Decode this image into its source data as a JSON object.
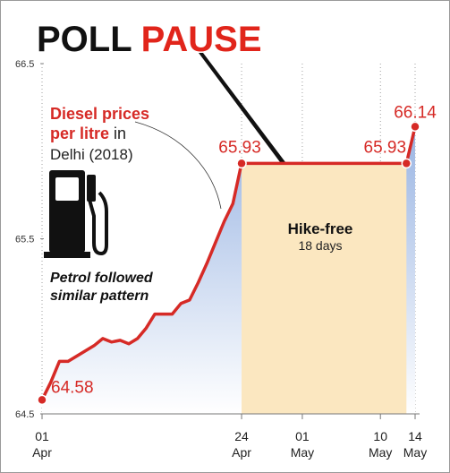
{
  "title": {
    "part1": "POLL",
    "part2": "PAUSE"
  },
  "note": {
    "bold": "Diesel prices",
    "line2_bold": "per litre",
    "line2_rest": " in",
    "line3": "Delhi (2018)"
  },
  "petrol_note": {
    "line1": "Petrol followed",
    "line2": "similar pattern"
  },
  "hike_free": {
    "title": "Hike-free",
    "subtitle": "18 days"
  },
  "colors": {
    "line": "#d62a26",
    "band": "#fbe7c0",
    "area_top": "#9ab5e3",
    "title_red": "#e1251b"
  },
  "chart_data": {
    "type": "line",
    "title": "POLL PAUSE",
    "ylabel": "",
    "xlabel": "",
    "ylim": [
      64.5,
      66.5
    ],
    "y_ticks": [
      "64.5",
      "65.5",
      "66.5"
    ],
    "x_ticks": [
      {
        "day": 0,
        "top": "01",
        "bottom": "Apr"
      },
      {
        "day": 23,
        "top": "24",
        "bottom": "Apr"
      },
      {
        "day": 30,
        "top": "01",
        "bottom": "May"
      },
      {
        "day": 39,
        "top": "10",
        "bottom": "May"
      },
      {
        "day": 43,
        "top": "14",
        "bottom": "May"
      }
    ],
    "series": [
      {
        "x": [
          0,
          1,
          2,
          3,
          4,
          5,
          6,
          7,
          8,
          9,
          10,
          11,
          12,
          13,
          14,
          15,
          16,
          17,
          18,
          19,
          20,
          21,
          22,
          23,
          42,
          43
        ],
        "values": [
          64.58,
          64.68,
          64.8,
          64.8,
          64.83,
          64.86,
          64.89,
          64.93,
          64.91,
          64.92,
          64.9,
          64.93,
          64.99,
          65.07,
          65.07,
          65.07,
          65.13,
          65.15,
          65.25,
          65.36,
          65.48,
          65.6,
          65.7,
          65.93,
          65.93,
          66.14
        ]
      }
    ],
    "data_labels": [
      {
        "x": 0,
        "text": "64.58"
      },
      {
        "x": 23,
        "text": "65.93"
      },
      {
        "x": 42,
        "text": "65.93"
      },
      {
        "x": 43,
        "text": "66.14"
      }
    ],
    "highlight": {
      "from": 23,
      "to": 42,
      "label": "Hike-free",
      "sublabel": "18 days"
    }
  }
}
